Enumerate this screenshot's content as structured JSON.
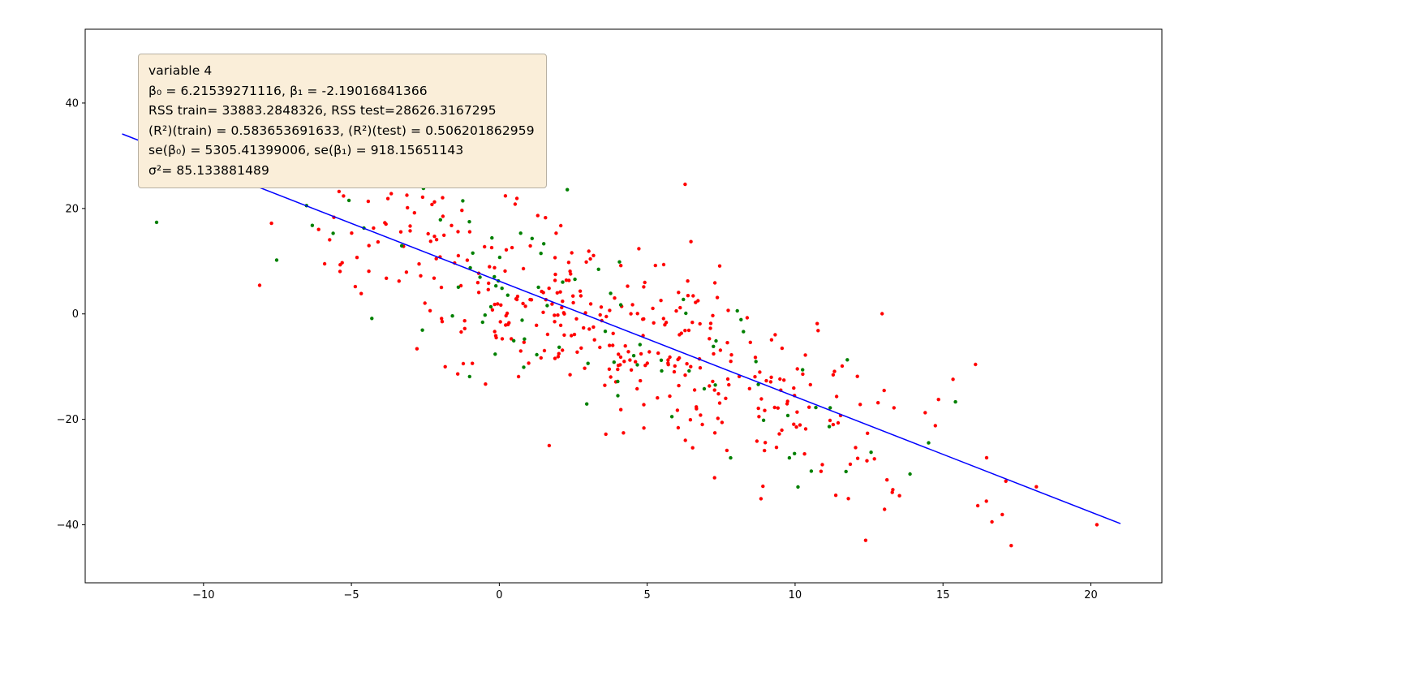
{
  "figure": {
    "background": "#ffffff"
  },
  "annotation": {
    "background": "#faeed9",
    "border_color": "#b7b0a2",
    "lines": [
      "variable 4",
      "β₀ = 6.21539271116, β₁ = -2.19016841366",
      "RSS train= 33883.2848326, RSS test=28626.3167295",
      "(R²)(train) = 0.583653691633, (R²)(test) = 0.506201862959",
      "se(β₀) = 5305.41399006, se(β₁) = 918.15651143",
      "σ²= 85.133881489"
    ]
  },
  "chart_data": {
    "type": "scatter",
    "title": "",
    "xlabel": "",
    "ylabel": "",
    "grid": false,
    "legend": "none",
    "xlim": [
      -14.0,
      22.4
    ],
    "ylim": [
      -51.0,
      54.0
    ],
    "x_ticks": [
      -10,
      -5,
      0,
      5,
      10,
      15,
      20
    ],
    "y_ticks": [
      -40,
      -20,
      0,
      20,
      40
    ],
    "axis_color": "#000000",
    "regression_line": {
      "intercept": 6.21539271116,
      "slope": -2.19016841366,
      "x_start": -12.75,
      "x_end": 21.0,
      "color": "#0000ff",
      "width": 1.5
    },
    "series": [
      {
        "name": "train",
        "color": "#ff0000",
        "marker": "dot",
        "marker_radius": 2.2,
        "n_points": 410,
        "x_mean": 3.3,
        "x_sd": 5.6,
        "noise_sd": 9.23,
        "seed": 20240
      },
      {
        "name": "test",
        "color": "#008000",
        "marker": "dot",
        "marker_radius": 2.2,
        "n_points": 95,
        "x_mean": 3.3,
        "x_sd": 5.6,
        "noise_sd": 9.23,
        "seed": 777
      }
    ],
    "stats": {
      "variable": "variable 4",
      "beta0": 6.21539271116,
      "beta1": -2.19016841366,
      "rss_train": 33883.2848326,
      "rss_test": 28626.3167295,
      "r2_train": 0.583653691633,
      "r2_test": 0.506201862959,
      "se_beta0": 5305.41399006,
      "se_beta1": 918.15651143,
      "sigma2": 85.133881489
    }
  }
}
